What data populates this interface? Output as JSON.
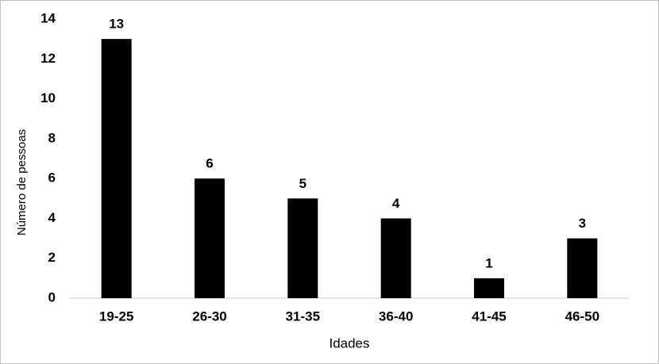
{
  "chart_data": {
    "type": "bar",
    "x_label": "Idades",
    "y_label": "Número de pessoas",
    "categories": [
      "19-25",
      "26-30",
      "31-35",
      "36-40",
      "41-45",
      "46-50"
    ],
    "values": [
      13,
      6,
      5,
      4,
      1,
      3
    ],
    "color": "#000000",
    "ylim": [
      0,
      14
    ],
    "yticks": [
      0,
      2,
      4,
      6,
      8,
      10,
      12,
      14
    ],
    "grid": false,
    "data_labels": true
  }
}
